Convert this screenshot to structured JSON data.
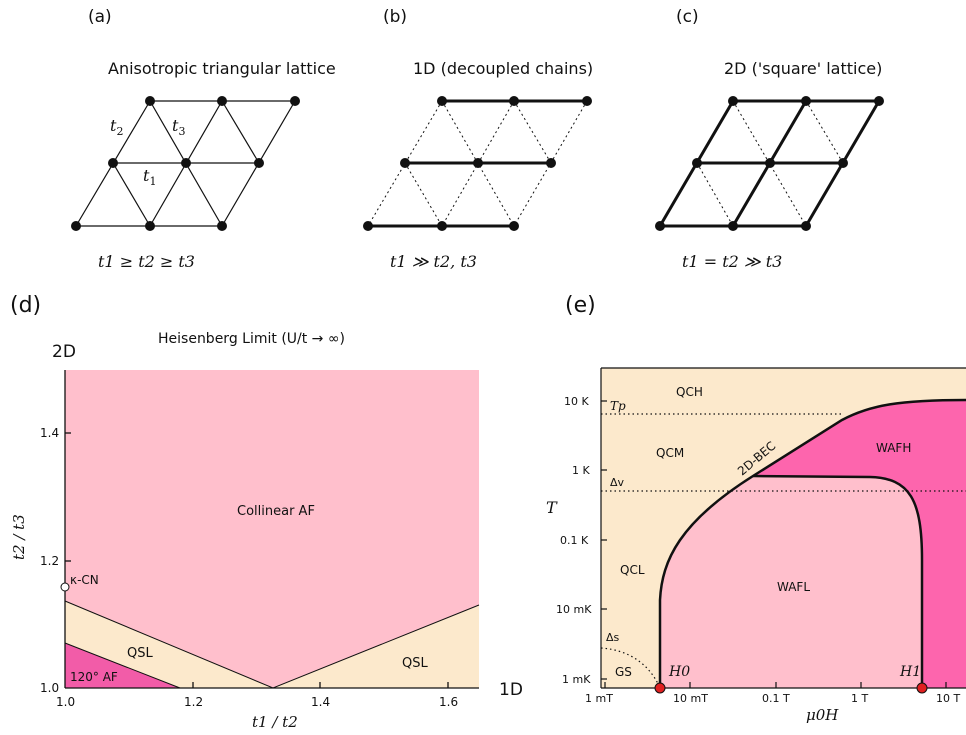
{
  "panels": {
    "a": {
      "label": "(a)",
      "title": "Anisotropic triangular lattice",
      "bond_t1": "t",
      "bond_t1_sub": "1",
      "bond_t2": "t",
      "bond_t2_sub": "2",
      "bond_t3": "t",
      "bond_t3_sub": "3",
      "condition": "t1 ≥ t2 ≥ t3"
    },
    "b": {
      "label": "(b)",
      "title": "1D (decoupled chains)",
      "condition": "t1 ≫ t2, t3"
    },
    "c": {
      "label": "(c)",
      "title": "2D ('square' lattice)",
      "condition": "t1 = t2 ≫ t3"
    },
    "d": {
      "label": "(d)",
      "title": "Heisenberg Limit (U/t → ∞)",
      "corner_2d": "2D",
      "corner_1d": "1D",
      "xlabel": "t1 / t2",
      "ylabel": "t2 / t3",
      "regions": [
        "Collinear AF",
        "QSL",
        "QSL",
        "120° AF"
      ],
      "point_label": "κ-CN",
      "colors": {
        "collinear": "#ffbfcc",
        "qsl": "#fce9cc",
        "af120": "#f25ca8"
      }
    },
    "e": {
      "label": "(e)",
      "ylabel": "T",
      "xlabel": "μ0H",
      "regions": {
        "qch": "QCH",
        "qcm": "QCM",
        "qcl": "QCL",
        "waf_h": "WAFH",
        "waf_l": "WAFL",
        "gs": "GS",
        "bec": "2D-BEC"
      },
      "energy_labels": {
        "tp": "Tp",
        "dv": "Δv",
        "ds": "Δs"
      },
      "points": {
        "h0": "H0",
        "h1": "H1"
      },
      "colors": {
        "qc": "#fce9cc",
        "wafl": "#ffbfcc",
        "wafh": "#fd65ad",
        "marker": "#e02020"
      }
    }
  },
  "chart_data": [
    {
      "type": "area",
      "title": "Heisenberg Limit (U/t → ∞)",
      "xlabel": "t1 / t2",
      "ylabel": "t2 / t3",
      "xlim": [
        1.0,
        1.65
      ],
      "ylim": [
        1.0,
        1.5
      ],
      "x_ticks": [
        "1.0",
        "1.2",
        "1.4",
        "1.6"
      ],
      "y_ticks": [
        "1.0",
        "1.2",
        "1.4"
      ],
      "boundaries": [
        {
          "x": [
            1.0,
            1.33,
            1.65
          ],
          "y": [
            1.14,
            1.0,
            1.13
          ]
        },
        {
          "x": [
            1.0,
            1.18
          ],
          "y": [
            1.07,
            1.0
          ]
        }
      ],
      "regions": [
        "Collinear AF",
        "QSL",
        "QSL",
        "120° AF"
      ],
      "points": [
        {
          "label": "κ-CN",
          "x": 1.0,
          "y": 1.16
        }
      ]
    },
    {
      "type": "area",
      "xlabel": "μ0H",
      "ylabel": "T",
      "xscale": "log",
      "yscale": "log",
      "x_ticks": [
        "1 mT",
        "10 mT",
        "0.1 T",
        "1 T",
        "10 T"
      ],
      "y_ticks": [
        "1 mK",
        "10 mK",
        "0.1 K",
        "1 K",
        "10 K"
      ],
      "regions": [
        "QCH",
        "QCM",
        "QCL",
        "WAFH",
        "WAFL",
        "GS",
        "2D-BEC"
      ],
      "critical_fields": {
        "H0": "5.5 mT",
        "H1": "4.5 T"
      },
      "crossover_temperatures": {
        "Tp": "6 K",
        "Δv": "0.5 K"
      }
    }
  ]
}
